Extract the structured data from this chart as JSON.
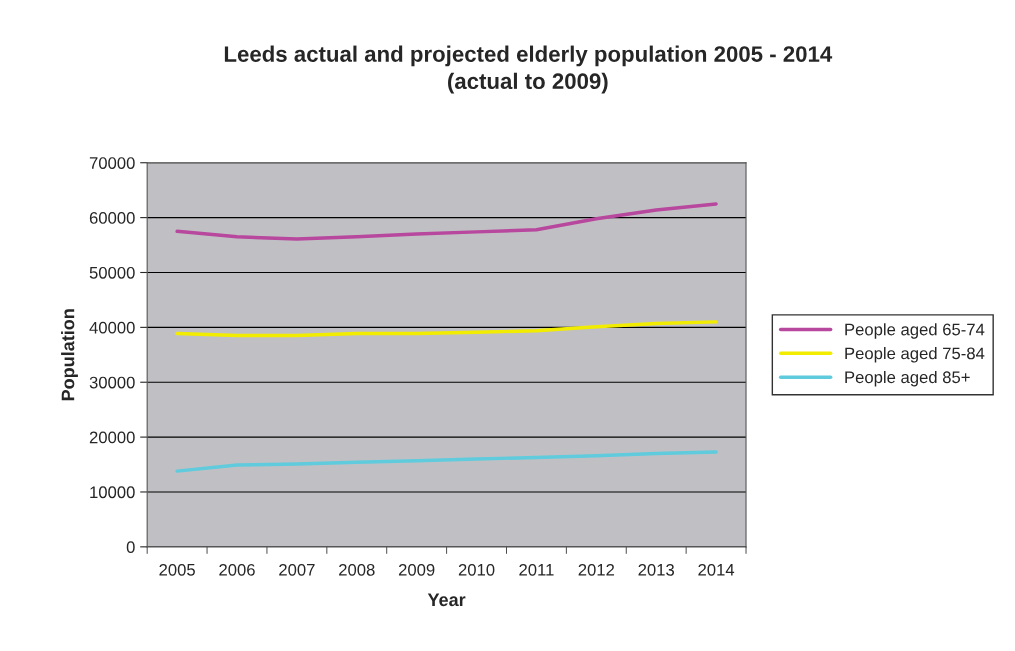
{
  "chart_data": {
    "type": "line",
    "title": "Leeds actual and projected elderly population 2005 - 2014\n(actual to 2009)",
    "xlabel": "Year",
    "ylabel": "Population",
    "categories": [
      "2005",
      "2006",
      "2007",
      "2008",
      "2009",
      "2010",
      "2011",
      "2012",
      "2013",
      "2014"
    ],
    "series": [
      {
        "name": "People aged 65-74",
        "color": "#b8479e",
        "values": [
          57500,
          56500,
          56100,
          56500,
          57000,
          57400,
          57800,
          59800,
          61400,
          62500
        ]
      },
      {
        "name": "People aged 75-84",
        "color": "#f2ec00",
        "values": [
          38900,
          38500,
          38500,
          38900,
          38900,
          39100,
          39400,
          40100,
          40700,
          41000
        ]
      },
      {
        "name": "People aged 85+",
        "color": "#5fcbdc",
        "values": [
          13800,
          14900,
          15100,
          15400,
          15700,
          16000,
          16300,
          16600,
          17000,
          17300
        ]
      }
    ],
    "ylim": [
      0,
      70000
    ],
    "yticks": [
      0,
      10000,
      20000,
      30000,
      40000,
      50000,
      60000,
      70000
    ],
    "grid": "y",
    "legend": "right",
    "marker": "none",
    "line_style": "solid"
  }
}
